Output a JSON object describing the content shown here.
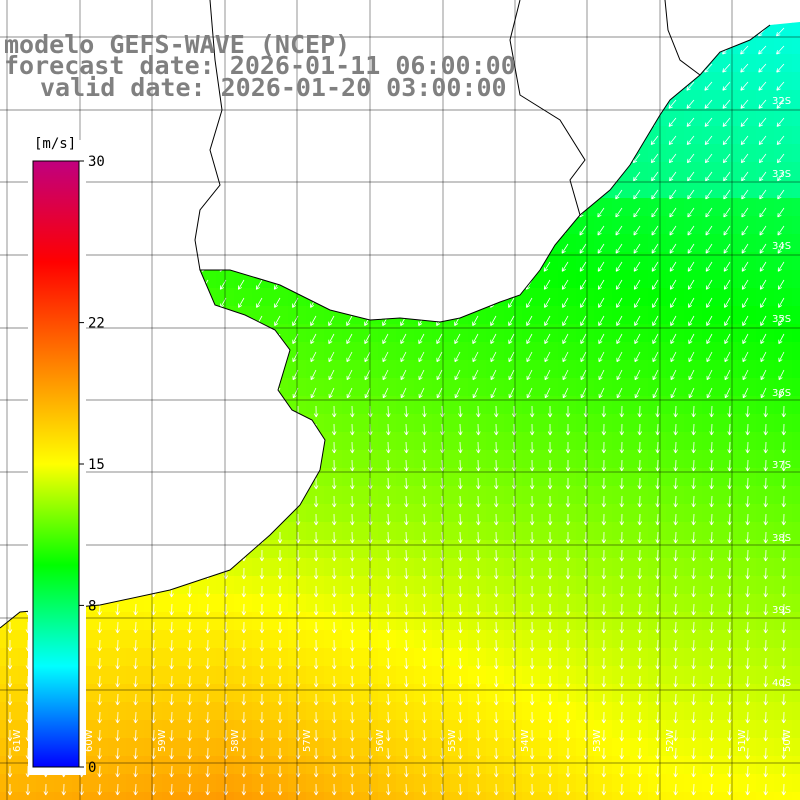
{
  "header": {
    "line1": "modelo GEFS-WAVE (NCEP)",
    "line2": "forecast date: 2026-01-11 06:00:00",
    "line3": "valid date: 2026-01-20 03:00:00"
  },
  "colorbar": {
    "unit": "[m/s]",
    "ticks": [
      "30",
      "22",
      "15",
      "8",
      "0"
    ],
    "tick_values": [
      30,
      22,
      15,
      8,
      0
    ],
    "min": 0,
    "max": 30,
    "colors": [
      "#0000ff",
      "#00ffff",
      "#00ff00",
      "#ffff00",
      "#ff8000",
      "#ff0000",
      "#c0007f"
    ]
  },
  "map": {
    "lat_labels": [
      "32S",
      "33S",
      "34S",
      "35S",
      "36S",
      "37S",
      "38S",
      "39S",
      "40S"
    ],
    "lon_labels": [
      "61W",
      "60W",
      "59W",
      "58W",
      "57W",
      "56W",
      "55W",
      "54W",
      "53W",
      "52W",
      "51W",
      "50W"
    ],
    "land_color": "#ffffff",
    "coast_color": "#000000",
    "grid_color": "#000000",
    "arrow_color": "#ffffff",
    "wind_direction": "from NE toward SW / S"
  }
}
